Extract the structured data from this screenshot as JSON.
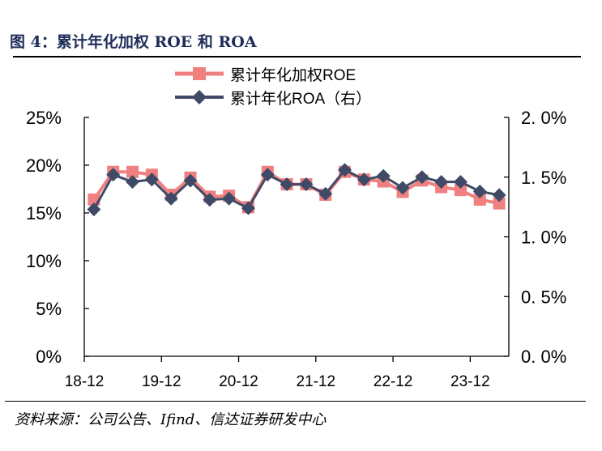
{
  "title": "图 4：累计年化加权 ROE 和 ROA",
  "source": "资料来源：公司公告、Ifind、信达证券研发中心",
  "chart_data": {
    "type": "line",
    "categories": [
      "18-12",
      "19-03",
      "19-06",
      "19-09",
      "19-12",
      "20-03",
      "20-06",
      "20-09",
      "20-12",
      "21-03",
      "21-06",
      "21-09",
      "21-12",
      "22-03",
      "22-06",
      "22-09",
      "22-12",
      "23-03",
      "23-06",
      "23-09",
      "23-12",
      "24-03"
    ],
    "x_tick_labels": [
      "18-12",
      "19-12",
      "20-12",
      "21-12",
      "22-12",
      "23-12"
    ],
    "x_tick_every": 4,
    "series": [
      {
        "name": "累计年化加权ROE",
        "axis": "left",
        "color": "#f08080",
        "marker": "square",
        "values": [
          16.4,
          19.3,
          19.3,
          19.0,
          16.9,
          18.7,
          16.7,
          16.8,
          15.6,
          19.3,
          18.0,
          18.0,
          16.9,
          19.3,
          18.5,
          18.3,
          17.2,
          18.4,
          17.7,
          17.4,
          16.4,
          16.0
        ]
      },
      {
        "name": "累计年化ROA（右）",
        "axis": "right",
        "color": "#3f4a66",
        "marker": "diamond",
        "values": [
          1.23,
          1.52,
          1.46,
          1.48,
          1.32,
          1.47,
          1.31,
          1.32,
          1.24,
          1.52,
          1.44,
          1.44,
          1.36,
          1.56,
          1.48,
          1.51,
          1.41,
          1.5,
          1.46,
          1.46,
          1.38,
          1.35
        ]
      }
    ],
    "y_left": {
      "min": 0,
      "max": 25,
      "ticks": [
        "0%",
        "5%",
        "10%",
        "15%",
        "20%",
        "25%"
      ]
    },
    "y_right": {
      "min": 0,
      "max": 2.0,
      "ticks": [
        "0. 0%",
        "0. 5%",
        "1. 0%",
        "1. 5%",
        "2. 0%"
      ]
    },
    "legend_position": "top-center",
    "grid": false
  }
}
